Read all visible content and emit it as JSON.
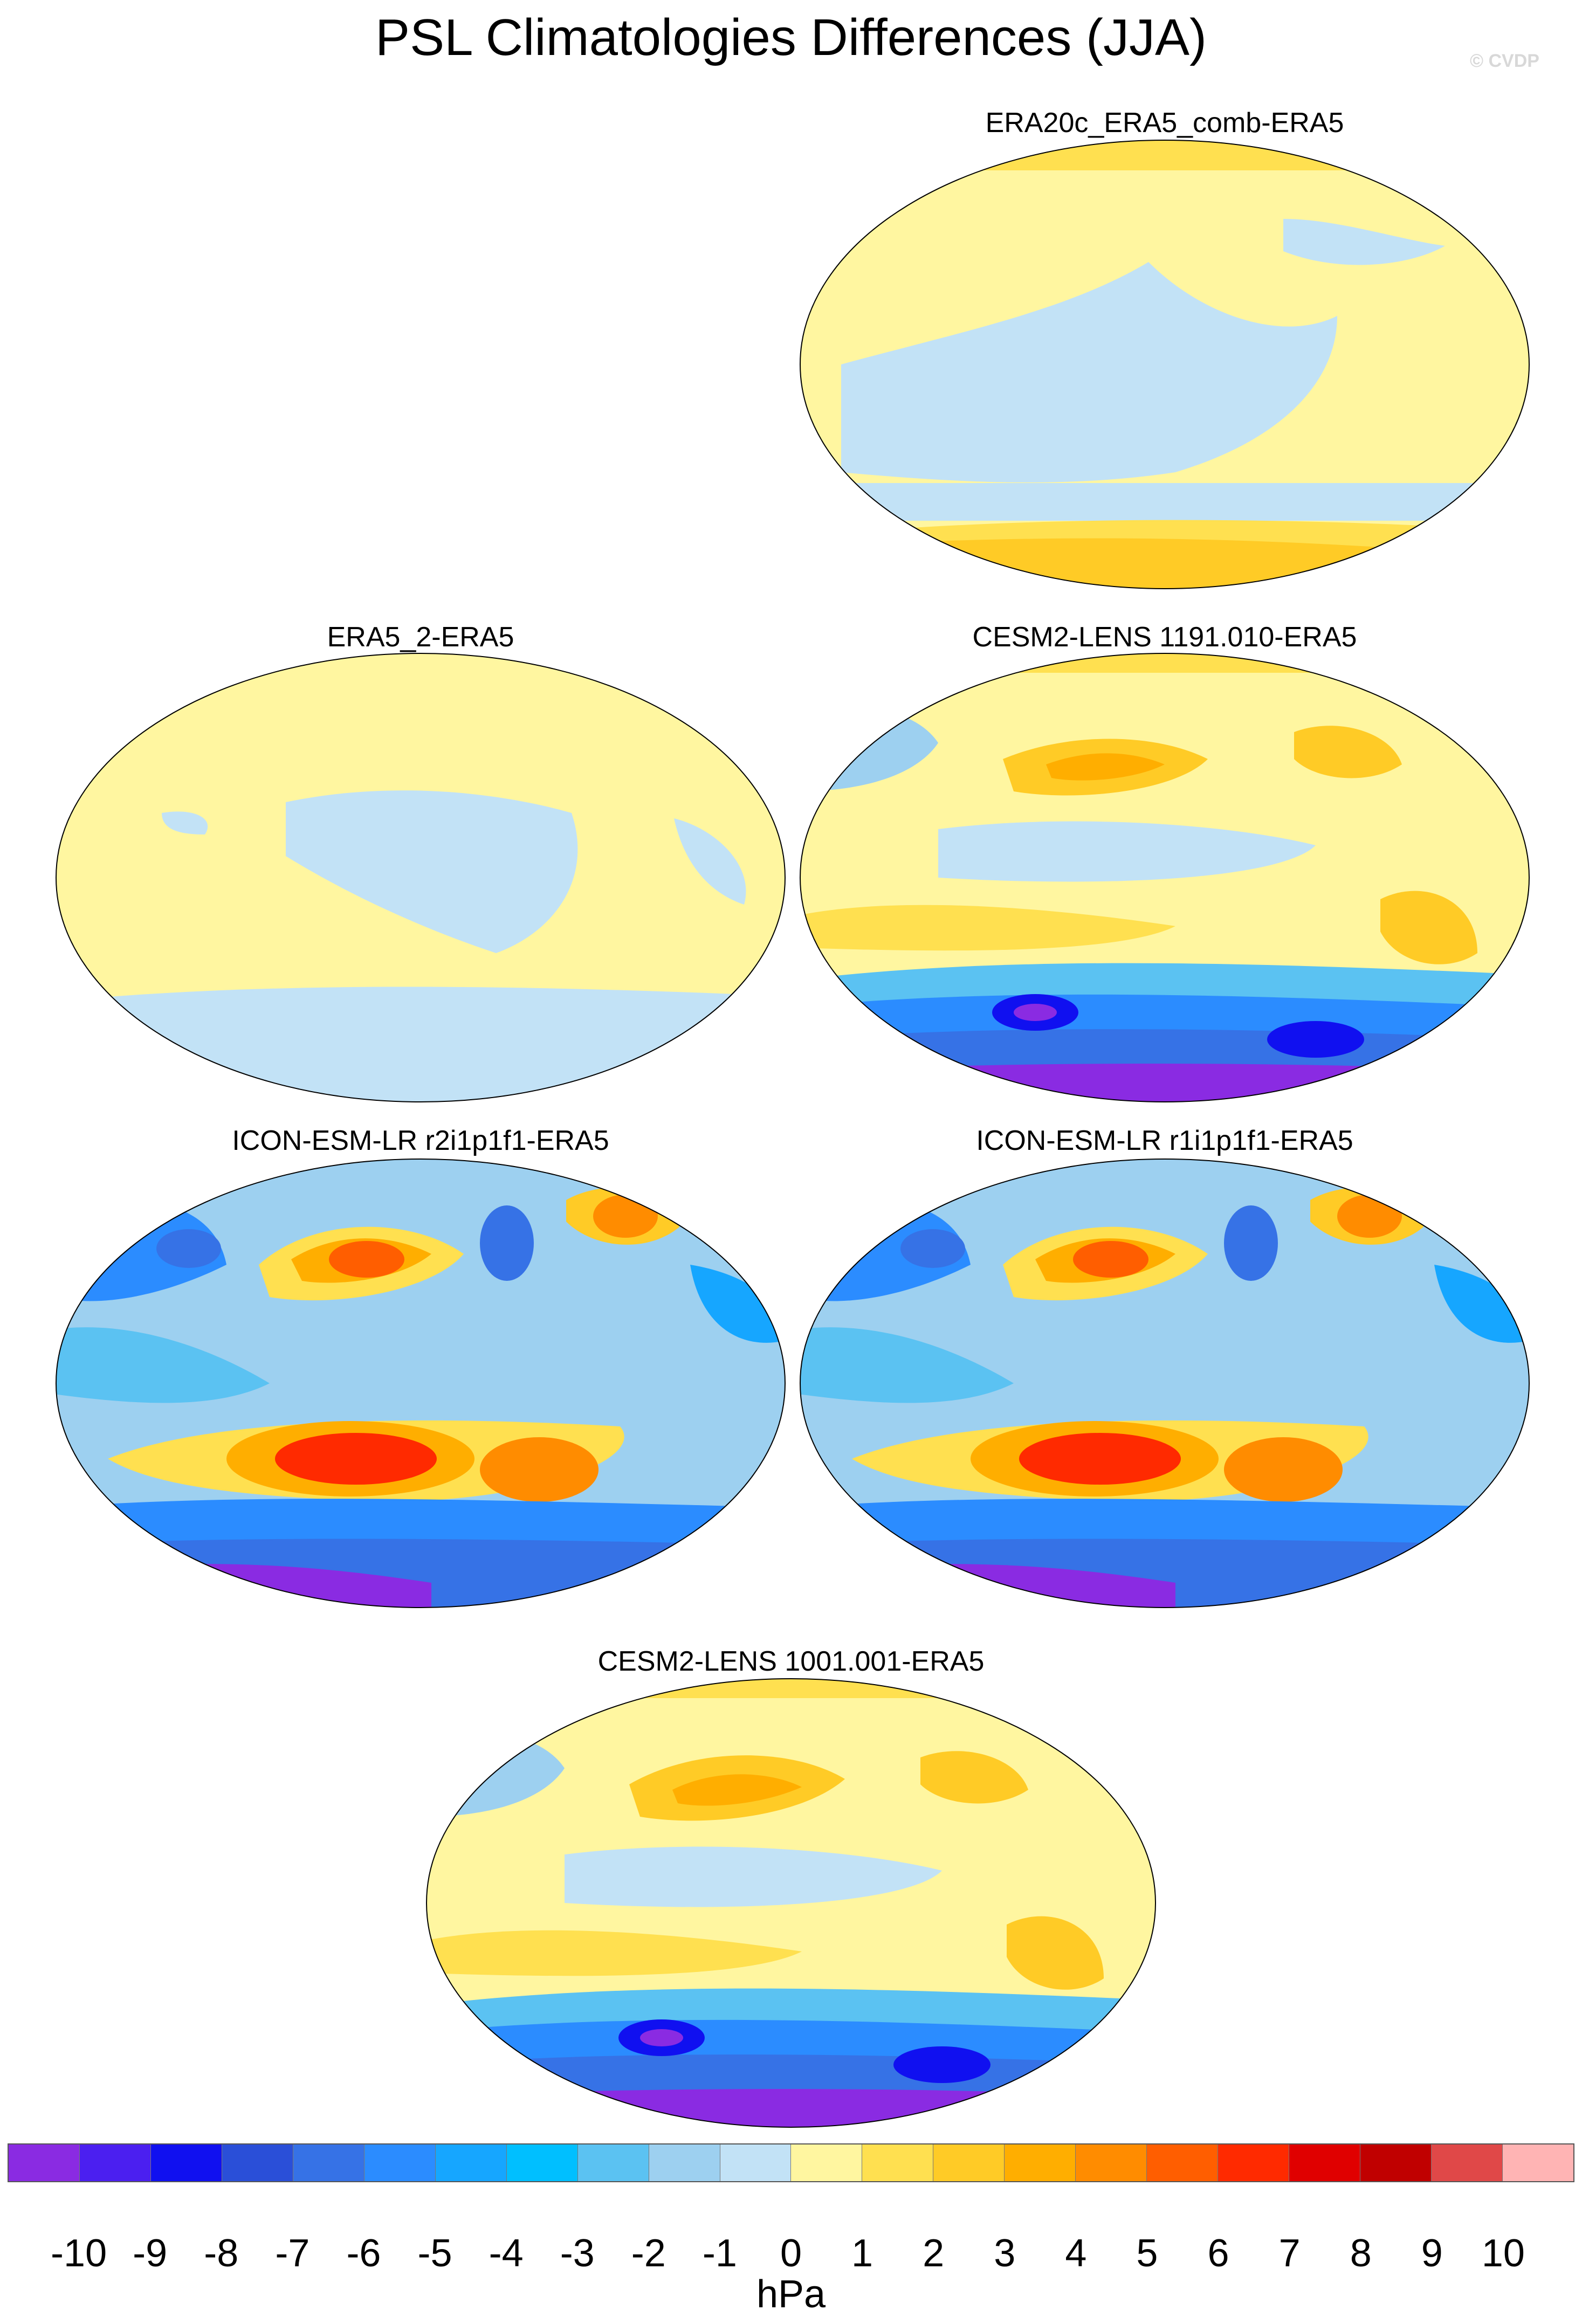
{
  "title": "PSL Climatologies Differences (JJA)",
  "watermark": "© CVDP",
  "colorbar": {
    "units": "hPa",
    "ticks": [
      "-10",
      "-9",
      "-8",
      "-7",
      "-6",
      "-5",
      "-4",
      "-3",
      "-2",
      "-1",
      "0",
      "1",
      "2",
      "3",
      "4",
      "5",
      "6",
      "7",
      "8",
      "9",
      "10"
    ],
    "colors": [
      "#8a2be2",
      "#4b1ff0",
      "#1010f0",
      "#2a4fd8",
      "#3672e6",
      "#2b8cff",
      "#16a6ff",
      "#00bfff",
      "#5bc2f2",
      "#9dd0f0",
      "#c2e2f6",
      "#fff6a0",
      "#ffe050",
      "#ffcb26",
      "#ffae00",
      "#ff8c00",
      "#ff5e00",
      "#ff2a00",
      "#e00000",
      "#c00000",
      "#e04848",
      "#ffb4b4"
    ]
  },
  "panels": [
    {
      "title": "ERA20c_ERA5_comb-ERA5"
    },
    {
      "title": "ERA5_2-ERA5"
    },
    {
      "title": "CESM2-LENS 1191.010-ERA5"
    },
    {
      "title": "ICON-ESM-LR r2i1p1f1-ERA5"
    },
    {
      "title": "ICON-ESM-LR r1i1p1f1-ERA5"
    },
    {
      "title": "CESM2-LENS 1001.001-ERA5"
    }
  ]
}
